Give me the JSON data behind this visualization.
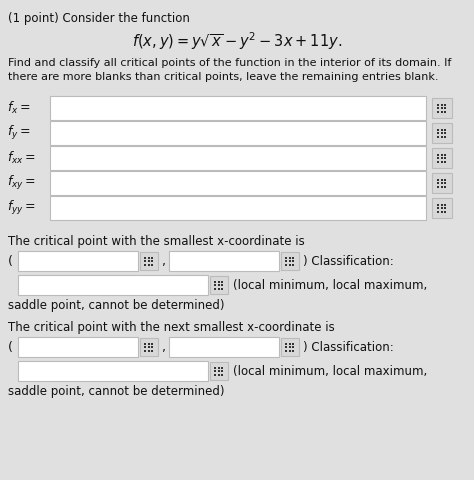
{
  "bg_color": "#e0e0e0",
  "white": "#ffffff",
  "icon_bg": "#e8e8e8",
  "border_color": "#bbbbbb",
  "black": "#111111",
  "icon_color": "#333333",
  "title_line1": "(1 point) Consider the function",
  "formula": "$f(x, y) = y\\sqrt{x} - y^2 - 3x + 11y.$",
  "desc_line1": "Find and classify all critical points of the function in the interior of its domain. If",
  "desc_line2": "there are more blanks than critical points, leave the remaining entries blank.",
  "partial_labels": [
    "$f_x =$",
    "$f_y =$",
    "$f_{xx} =$",
    "$f_{xy} =$",
    "$f_{yy} =$"
  ],
  "critical1_label": "The critical point with the smallest x-coordinate is",
  "critical2_label": "The critical point with the next smallest x-coordinate is",
  "options_text": "(local minimum, local maximum,",
  "saddle_text": "saddle point, cannot be determined)"
}
